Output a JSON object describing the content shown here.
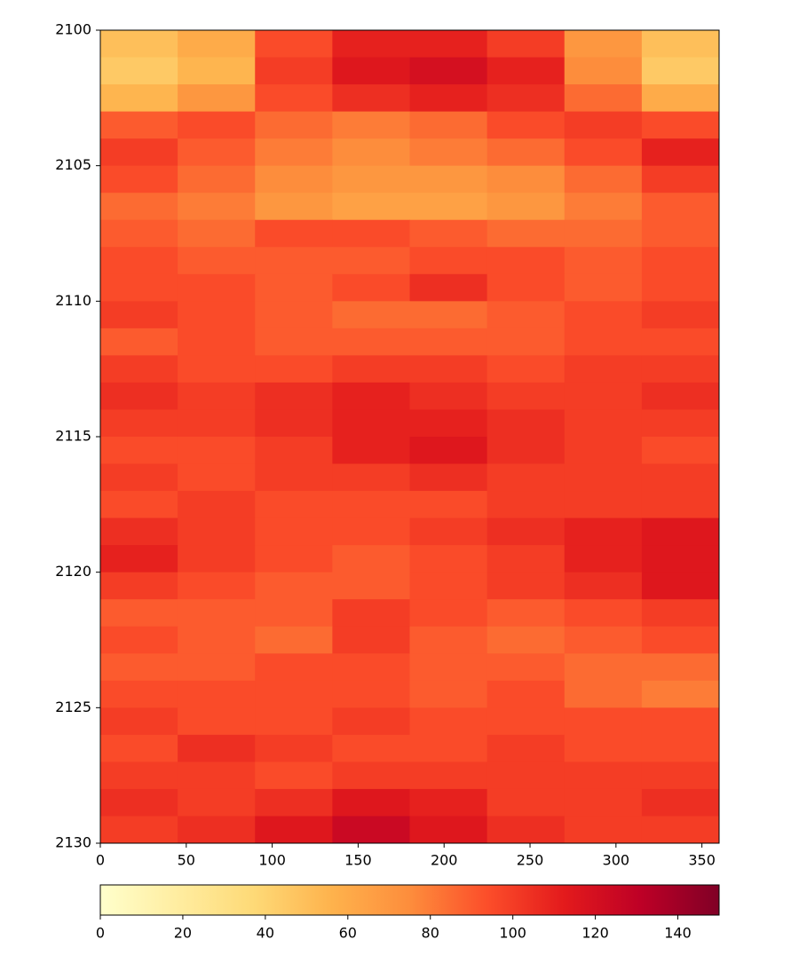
{
  "chart_data": {
    "type": "heatmap",
    "x_edges": [
      0,
      45,
      90,
      135,
      180,
      225,
      270,
      315,
      360
    ],
    "y_edges": [
      2100,
      2101,
      2102,
      2103,
      2104,
      2105,
      2106,
      2107,
      2108,
      2109,
      2110,
      2111,
      2112,
      2113,
      2114,
      2115,
      2116,
      2117,
      2118,
      2119,
      2120,
      2121,
      2122,
      2123,
      2124,
      2125,
      2126,
      2127,
      2128,
      2129,
      2130
    ],
    "z": [
      [
        50,
        60,
        95,
        110,
        110,
        100,
        70,
        50
      ],
      [
        45,
        55,
        100,
        115,
        120,
        110,
        75,
        45
      ],
      [
        55,
        70,
        95,
        105,
        110,
        105,
        85,
        60
      ],
      [
        90,
        95,
        85,
        80,
        85,
        95,
        100,
        95
      ],
      [
        100,
        90,
        80,
        75,
        80,
        85,
        95,
        110
      ],
      [
        95,
        85,
        75,
        70,
        70,
        75,
        85,
        100
      ],
      [
        85,
        80,
        70,
        65,
        65,
        70,
        80,
        90
      ],
      [
        90,
        85,
        95,
        95,
        90,
        85,
        85,
        90
      ],
      [
        95,
        90,
        90,
        90,
        95,
        95,
        90,
        95
      ],
      [
        95,
        95,
        90,
        95,
        105,
        95,
        90,
        95
      ],
      [
        100,
        95,
        90,
        85,
        85,
        90,
        95,
        100
      ],
      [
        90,
        95,
        90,
        90,
        90,
        90,
        95,
        95
      ],
      [
        100,
        95,
        95,
        100,
        100,
        95,
        100,
        100
      ],
      [
        105,
        100,
        105,
        110,
        105,
        100,
        100,
        105
      ],
      [
        100,
        100,
        105,
        110,
        110,
        105,
        100,
        100
      ],
      [
        95,
        95,
        100,
        110,
        115,
        105,
        100,
        95
      ],
      [
        100,
        95,
        100,
        100,
        105,
        100,
        100,
        100
      ],
      [
        95,
        100,
        95,
        95,
        95,
        100,
        100,
        100
      ],
      [
        105,
        100,
        95,
        95,
        100,
        105,
        110,
        115
      ],
      [
        110,
        100,
        95,
        90,
        95,
        100,
        110,
        115
      ],
      [
        100,
        95,
        90,
        90,
        95,
        100,
        105,
        115
      ],
      [
        90,
        90,
        90,
        100,
        95,
        90,
        95,
        100
      ],
      [
        95,
        90,
        85,
        100,
        90,
        85,
        90,
        95
      ],
      [
        90,
        90,
        95,
        95,
        90,
        90,
        85,
        85
      ],
      [
        95,
        95,
        95,
        95,
        90,
        95,
        85,
        80
      ],
      [
        100,
        95,
        95,
        100,
        95,
        95,
        95,
        95
      ],
      [
        95,
        105,
        100,
        95,
        95,
        100,
        95,
        95
      ],
      [
        100,
        100,
        95,
        100,
        100,
        100,
        100,
        100
      ],
      [
        105,
        100,
        105,
        115,
        110,
        100,
        100,
        105
      ],
      [
        100,
        105,
        115,
        125,
        115,
        105,
        100,
        100
      ]
    ],
    "xlim": [
      0,
      360
    ],
    "xticks": [
      0,
      50,
      100,
      150,
      200,
      250,
      300,
      350
    ],
    "ylim": [
      2100,
      2130
    ],
    "yticks": [
      2100,
      2105,
      2110,
      2115,
      2120,
      2125,
      2130
    ],
    "y_inverted": true,
    "clim": [
      0,
      150
    ],
    "cticks": [
      0,
      20,
      40,
      60,
      80,
      100,
      120,
      140
    ],
    "colorscale": [
      "#ffffcc",
      "#ffeda0",
      "#fed976",
      "#feb24c",
      "#fd8d3c",
      "#fc4e2a",
      "#e31a1c",
      "#bd0026",
      "#800026"
    ]
  }
}
